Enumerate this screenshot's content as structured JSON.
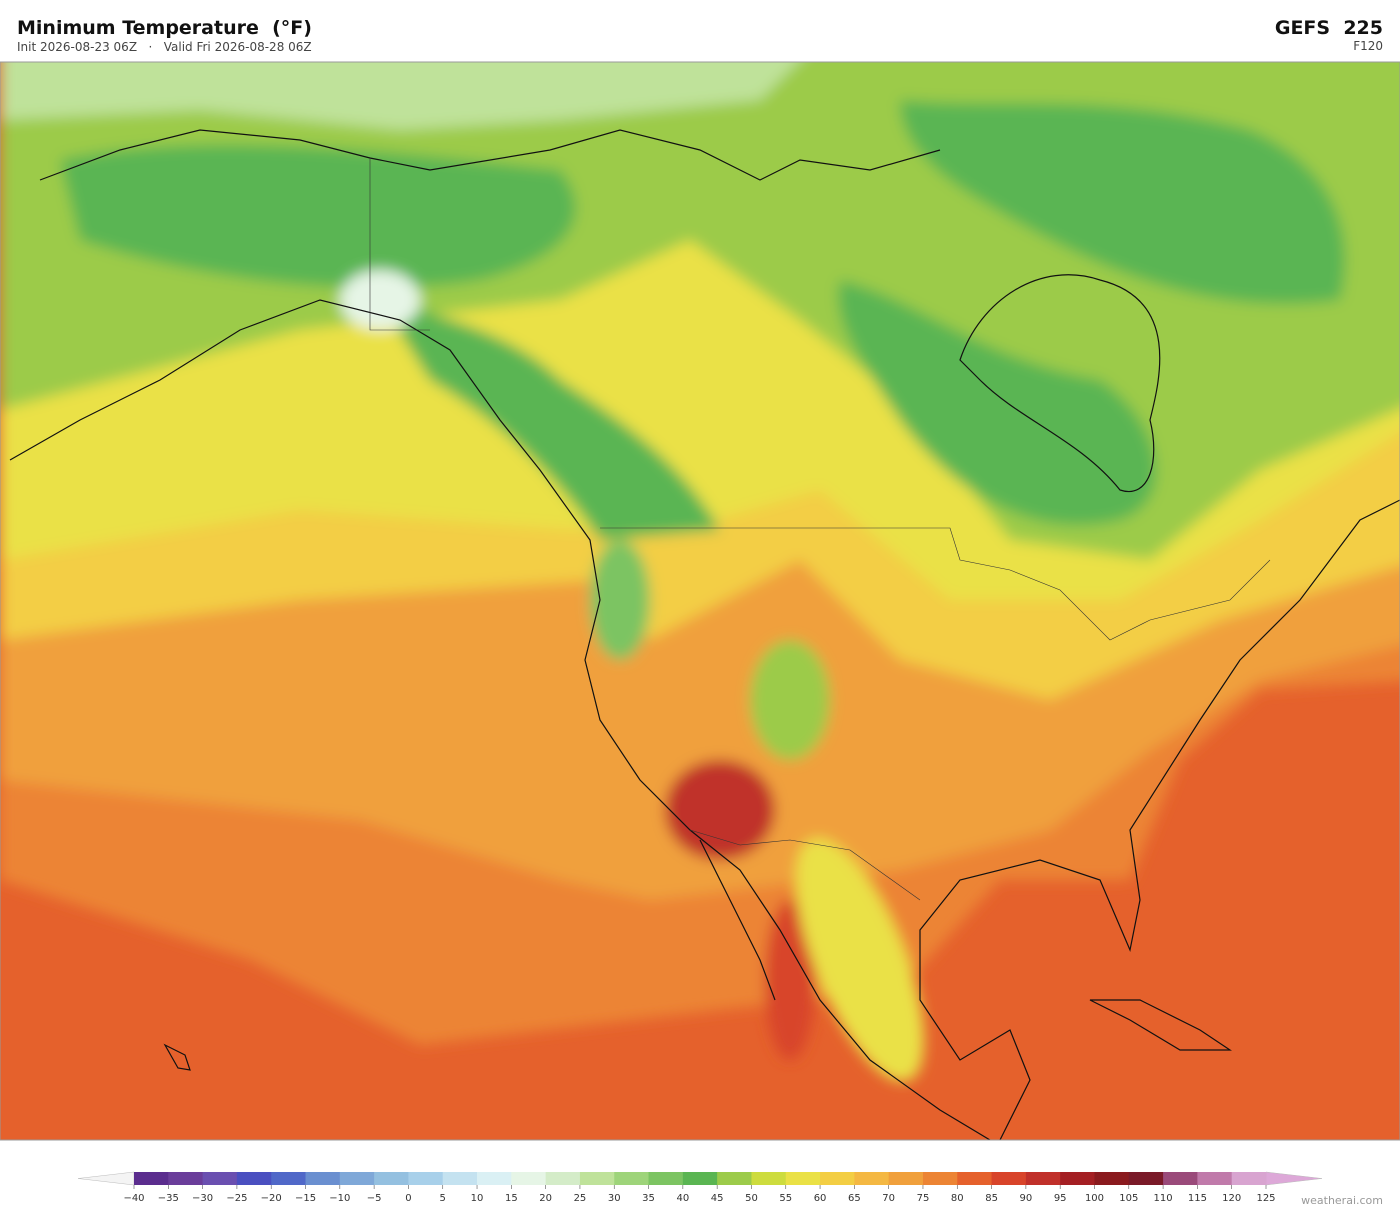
{
  "header": {
    "title": "Minimum Temperature  (°F)",
    "subtitle": "Init 2026-08-23 06Z   ·   Valid Fri 2026-08-28 06Z",
    "model": "GEFS  225",
    "forecast_hour": "F120"
  },
  "colorbar": {
    "ticks": [
      {
        "value": -40,
        "label": "−40"
      },
      {
        "value": -35,
        "label": "−35"
      },
      {
        "value": -30,
        "label": "−30"
      },
      {
        "value": -25,
        "label": "−25"
      },
      {
        "value": -20,
        "label": "−20"
      },
      {
        "value": -15,
        "label": "−15"
      },
      {
        "value": -10,
        "label": "−10"
      },
      {
        "value": -5,
        "label": "−5"
      },
      0,
      5,
      10,
      15,
      20,
      25,
      30,
      35,
      40,
      45,
      50,
      55,
      60,
      65,
      70,
      75,
      80,
      85,
      90,
      95,
      100,
      105,
      110,
      115,
      120,
      125
    ],
    "colors": [
      "#5b2d8e",
      "#6a3d9a",
      "#6a4fb0",
      "#4a4fc0",
      "#5068c8",
      "#6a8fd0",
      "#7fa8d8",
      "#94c0e0",
      "#a8d0ea",
      "#c4e2f0",
      "#daf0f4",
      "#e6f5e6",
      "#d4ecc8",
      "#bfe29a",
      "#9ed47a",
      "#7cc462",
      "#5ab552",
      "#9ccb4a",
      "#cddc3e",
      "#eae146",
      "#f3ce44",
      "#f4b843",
      "#f0a03c",
      "#ec8434",
      "#e5612c",
      "#d8442a",
      "#c0302a",
      "#a41f23",
      "#8a1a1e",
      "#7a1a28",
      "#9a4a7a",
      "#c07aaa",
      "#d8a4d0"
    ],
    "under_color": "#f4f4f4",
    "over_color": "#dda8d8"
  },
  "footer": {
    "credit": "weatherai.com"
  }
}
